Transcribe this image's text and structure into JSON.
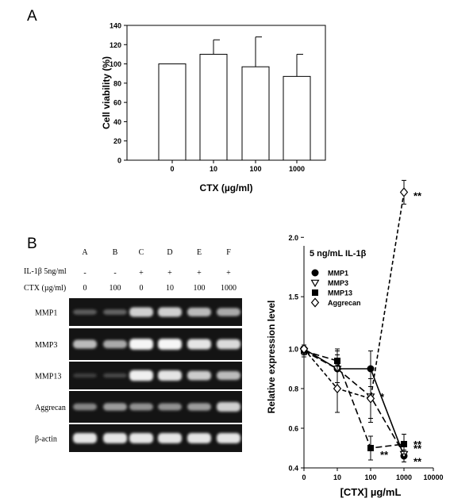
{
  "panel_labels": {
    "a": "A",
    "b": "B"
  },
  "chart_data": [
    {
      "type": "bar",
      "panel": "A",
      "categories": [
        "0",
        "10",
        "100",
        "1000"
      ],
      "values": [
        100,
        110,
        97,
        87
      ],
      "errors": [
        0,
        15,
        31,
        23
      ],
      "xlabel": "CTX (µg/ml)",
      "ylabel": "Cell viability (%)",
      "ylim": [
        0,
        140
      ],
      "yticks": [
        "0",
        "20",
        "40",
        "60",
        "80",
        "100",
        "120",
        "140"
      ],
      "bar_color": "#ffffff"
    },
    {
      "type": "line",
      "panel": "B",
      "title": "5 ng/mL IL-1β",
      "xlabel": "[CTX] µg/mL",
      "ylabel": "Relative expression level",
      "x_scale": "log",
      "x_ticks": [
        "0",
        "10",
        "100",
        "1000",
        "10000"
      ],
      "ylim": [
        0.4,
        2.5
      ],
      "yticks": [
        "0.4",
        "0.6",
        "0.8",
        "1.0",
        "1.5",
        "2.0"
      ],
      "legend_position": "top-left",
      "x": [
        0,
        10,
        100,
        1000
      ],
      "series": [
        {
          "name": "MMP1",
          "marker": "filled-circle",
          "values": [
            1.0,
            0.9,
            0.9,
            0.46
          ],
          "errors": [
            0.03,
            0.07,
            0.09,
            0.03
          ],
          "significance": [
            "",
            "",
            "",
            "**"
          ]
        },
        {
          "name": "MMP3",
          "marker": "open-triangle-down",
          "values": [
            0.99,
            0.9,
            0.76,
            0.47
          ],
          "errors": [
            0.03,
            0.1,
            0.13,
            0.04
          ],
          "significance": [
            "",
            "",
            "*",
            "**"
          ]
        },
        {
          "name": "MMP13",
          "marker": "filled-square",
          "values": [
            0.99,
            0.94,
            0.5,
            0.52
          ],
          "errors": [
            0.03,
            0.05,
            0.06,
            0.05
          ],
          "significance": [
            "",
            "",
            "**",
            "**"
          ]
        },
        {
          "name": "Aggrecan",
          "marker": "open-diamond",
          "values": [
            1.0,
            0.8,
            0.75,
            2.38
          ],
          "errors": [
            0.03,
            0.12,
            0.1,
            0.1
          ],
          "significance": [
            "",
            "",
            "",
            "**"
          ]
        }
      ]
    }
  ],
  "gel": {
    "lanes": [
      "A",
      "B",
      "C",
      "D",
      "E",
      "F"
    ],
    "il1b_label": "IL-1β 5ng/ml",
    "il1b": [
      "-",
      "-",
      "+",
      "+",
      "+",
      "+"
    ],
    "ctx_label": "CTX (µg/ml)",
    "ctx": [
      "0",
      "100",
      "0",
      "10",
      "100",
      "1000"
    ],
    "genes": [
      {
        "name": "MMP1",
        "intensity": [
          0.25,
          0.28,
          0.8,
          0.8,
          0.7,
          0.62
        ]
      },
      {
        "name": "MMP3",
        "intensity": [
          0.7,
          0.62,
          0.98,
          0.98,
          0.9,
          0.85
        ]
      },
      {
        "name": "MMP13",
        "intensity": [
          0.12,
          0.15,
          0.95,
          0.9,
          0.78,
          0.7
        ]
      },
      {
        "name": "Aggrecan",
        "intensity": [
          0.45,
          0.55,
          0.5,
          0.5,
          0.55,
          0.8
        ]
      },
      {
        "name": "β-actin",
        "intensity": [
          0.9,
          0.9,
          0.9,
          0.9,
          0.9,
          0.9
        ]
      }
    ]
  }
}
